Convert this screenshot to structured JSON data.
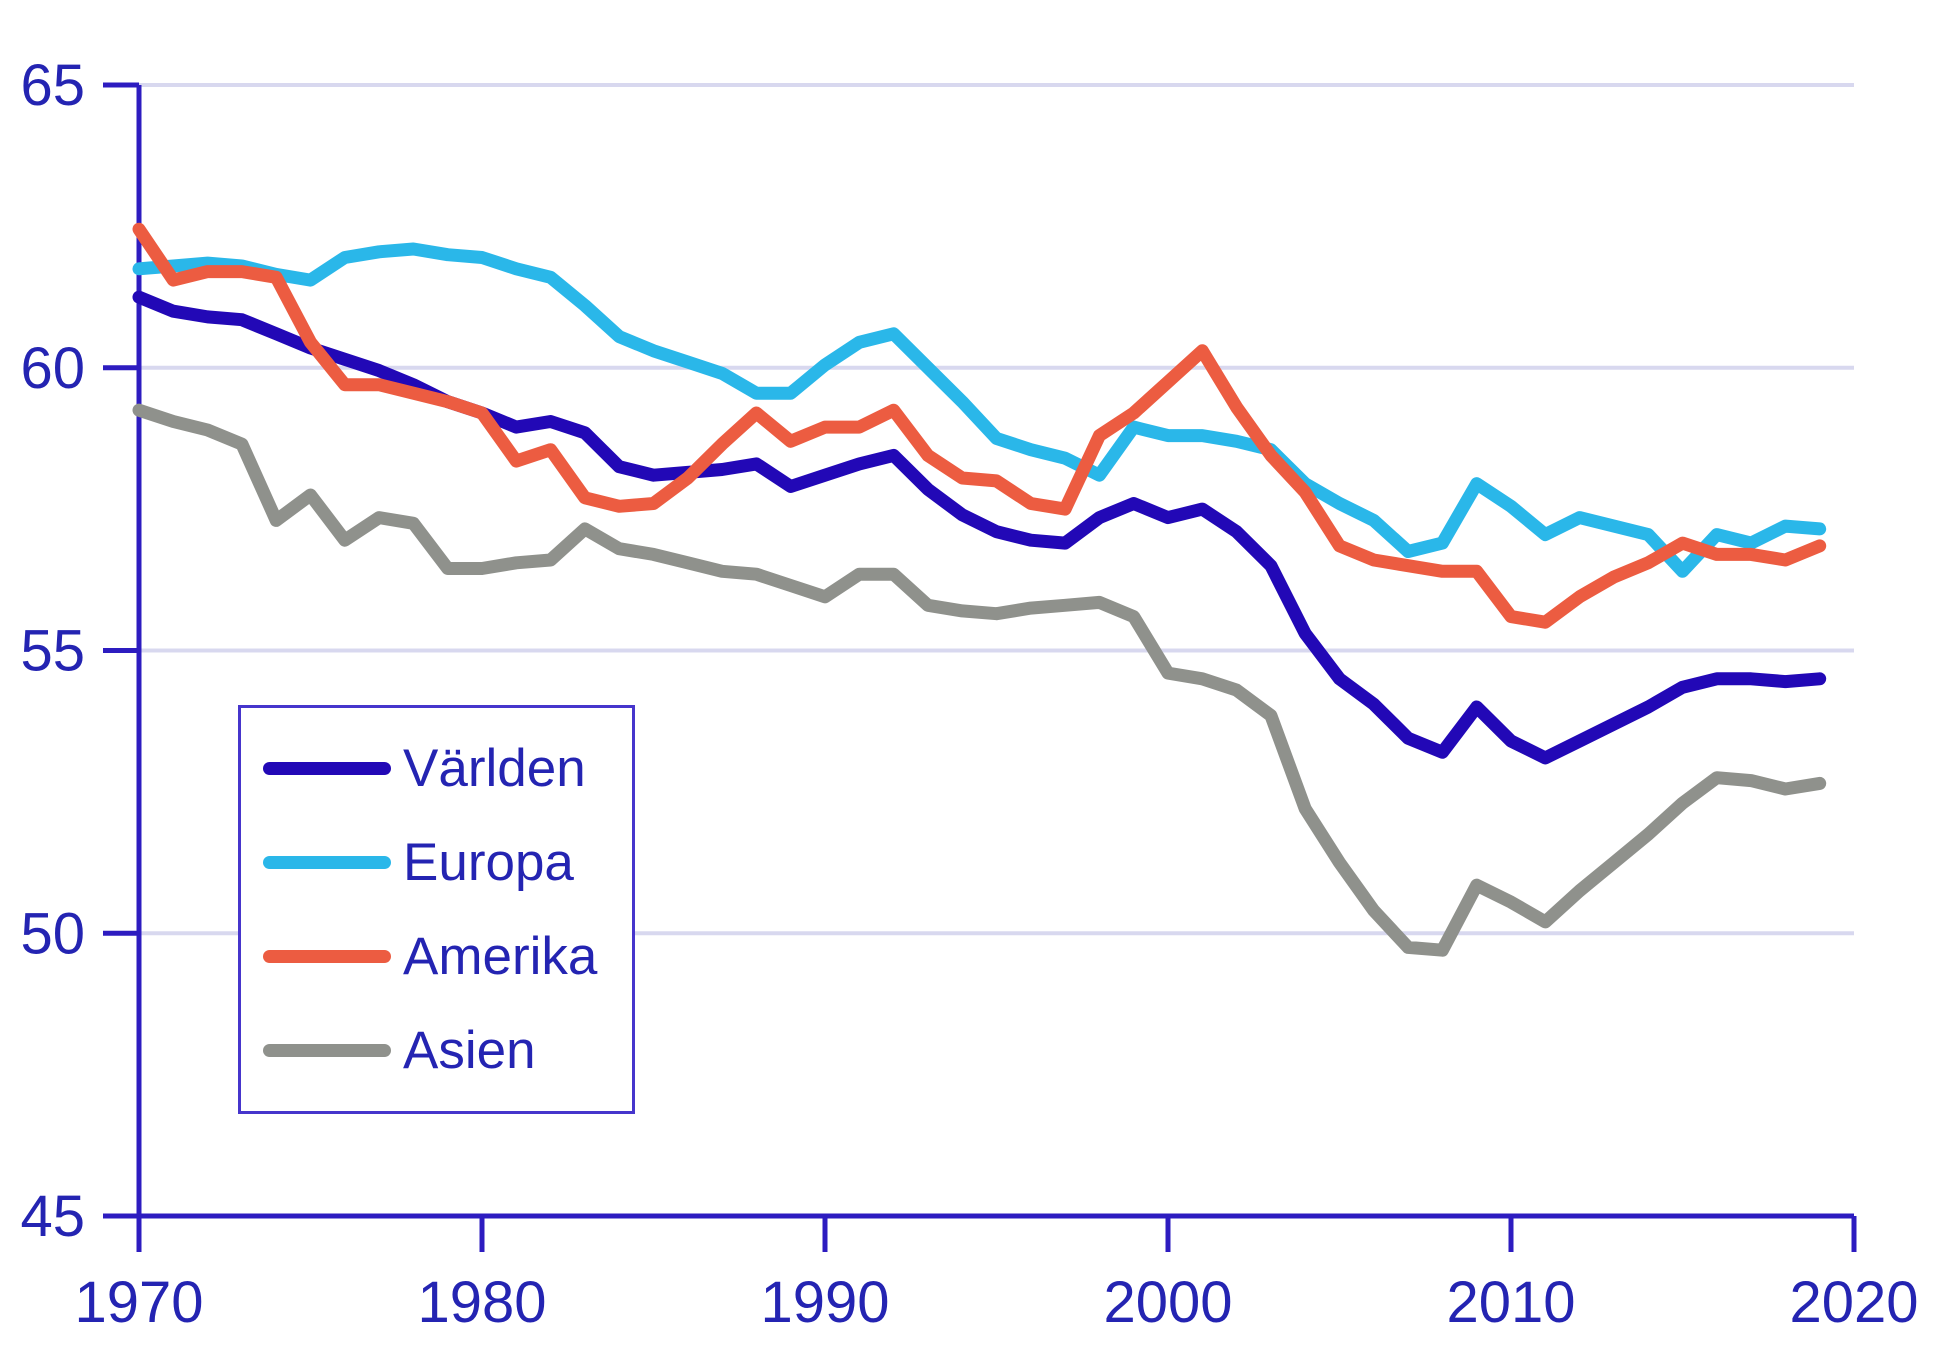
{
  "chart_data": {
    "type": "line",
    "title": "",
    "xlabel": "",
    "ylabel": "",
    "x_range": [
      1970,
      2020
    ],
    "ylim": [
      45,
      65
    ],
    "yticks": [
      45,
      50,
      55,
      60,
      65
    ],
    "xticks": [
      1970,
      1980,
      1990,
      2000,
      2010,
      2020
    ],
    "grid": "horizontal-only",
    "legend_position": "inside-left",
    "x": [
      1970,
      1971,
      1972,
      1973,
      1974,
      1975,
      1976,
      1977,
      1978,
      1979,
      1980,
      1981,
      1982,
      1983,
      1984,
      1985,
      1986,
      1987,
      1988,
      1989,
      1990,
      1991,
      1992,
      1993,
      1994,
      1995,
      1996,
      1997,
      1998,
      1999,
      2000,
      2001,
      2002,
      2003,
      2004,
      2005,
      2006,
      2007,
      2008,
      2009,
      2010,
      2011,
      2012,
      2013,
      2014,
      2015,
      2016,
      2017,
      2018,
      2019
    ],
    "series": [
      {
        "name": "Världen",
        "color": "#2208b6",
        "values": [
          61.25,
          61.0,
          60.9,
          60.85,
          60.6,
          60.35,
          60.15,
          59.95,
          59.7,
          59.4,
          59.2,
          58.95,
          59.05,
          58.85,
          58.25,
          58.1,
          58.15,
          58.2,
          58.3,
          57.9,
          58.1,
          58.3,
          58.45,
          57.85,
          57.4,
          57.1,
          56.95,
          56.9,
          57.35,
          57.6,
          57.35,
          57.5,
          57.1,
          56.5,
          55.3,
          54.5,
          54.05,
          53.45,
          53.2,
          54.0,
          53.4,
          53.1,
          53.4,
          53.7,
          54.0,
          54.35,
          54.5,
          54.5,
          54.45,
          54.5
        ]
      },
      {
        "name": "Europa",
        "color": "#2ab7e9",
        "values": [
          61.75,
          61.8,
          61.85,
          61.8,
          61.65,
          61.55,
          61.95,
          62.05,
          62.1,
          62.0,
          61.95,
          61.75,
          61.6,
          61.1,
          60.55,
          60.3,
          60.1,
          59.9,
          59.55,
          59.55,
          60.05,
          60.45,
          60.6,
          60.0,
          59.4,
          58.75,
          58.55,
          58.4,
          58.1,
          58.95,
          58.8,
          58.8,
          58.7,
          58.55,
          57.95,
          57.6,
          57.3,
          56.75,
          56.9,
          57.95,
          57.55,
          57.05,
          57.35,
          57.2,
          57.05,
          56.4,
          57.05,
          56.9,
          57.2,
          57.15
        ]
      },
      {
        "name": "Amerika",
        "color": "#ec5c41",
        "values": [
          62.45,
          61.55,
          61.7,
          61.7,
          61.6,
          60.45,
          59.7,
          59.7,
          59.55,
          59.4,
          59.2,
          58.35,
          58.55,
          57.7,
          57.55,
          57.6,
          58.05,
          58.65,
          59.2,
          58.7,
          58.95,
          58.95,
          59.25,
          58.45,
          58.05,
          58.0,
          57.6,
          57.5,
          58.8,
          59.2,
          59.75,
          60.3,
          59.3,
          58.45,
          57.8,
          56.85,
          56.6,
          56.5,
          56.4,
          56.4,
          55.6,
          55.5,
          55.95,
          56.3,
          56.55,
          56.9,
          56.7,
          56.7,
          56.6,
          56.85
        ]
      },
      {
        "name": "Asien",
        "color": "#8f918c",
        "values": [
          59.25,
          59.05,
          58.9,
          58.65,
          57.3,
          57.75,
          56.95,
          57.35,
          57.25,
          56.45,
          56.45,
          56.55,
          56.6,
          57.15,
          56.8,
          56.7,
          56.55,
          56.4,
          56.35,
          56.15,
          55.95,
          56.35,
          56.35,
          55.8,
          55.7,
          55.65,
          55.75,
          55.8,
          55.85,
          55.6,
          54.6,
          54.5,
          54.3,
          53.85,
          52.2,
          51.25,
          50.4,
          49.75,
          49.7,
          50.85,
          50.55,
          50.2,
          50.75,
          51.25,
          51.75,
          52.3,
          52.75,
          52.7,
          52.55,
          52.65
        ]
      }
    ],
    "colors": {
      "axis": "#2d1cc0",
      "tick_label": "#2424b2",
      "gridline": "#d8d8ef",
      "legend_border": "#4635cc",
      "background": "#ffffff"
    }
  },
  "legend": {
    "items": [
      {
        "label": "Världen"
      },
      {
        "label": "Europa"
      },
      {
        "label": "Amerika"
      },
      {
        "label": "Asien"
      }
    ]
  }
}
